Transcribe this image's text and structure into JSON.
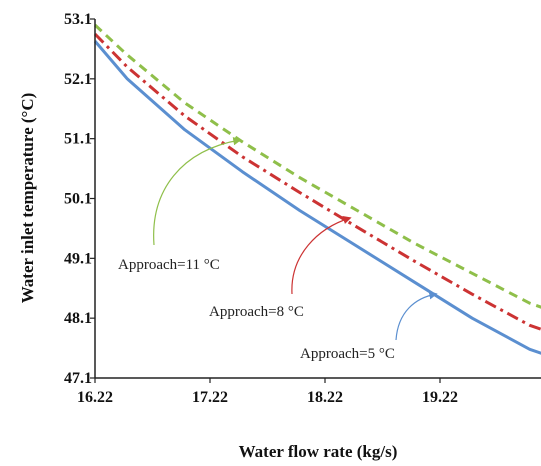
{
  "chart_data": {
    "type": "line",
    "title": "",
    "xlabel": "Water flow rate (kg/s)",
    "ylabel": "Water inlet temperature (°C)",
    "xlim": [
      16.22,
      20.15
    ],
    "ylim": [
      47.1,
      53.1
    ],
    "xticks": [
      "16.22",
      "17.22",
      "18.22",
      "19.22"
    ],
    "yticks": [
      "47.1",
      "48.1",
      "49.1",
      "50.1",
      "51.1",
      "52.1",
      "53.1"
    ],
    "grid": false,
    "legend": "none",
    "series": [
      {
        "color": "#5b8fd0",
        "dash": "solid",
        "x": [
          16.22,
          16.5,
          17.0,
          17.5,
          18.0,
          18.5,
          19.0,
          19.5,
          20.0,
          20.15
        ],
        "y": [
          52.73,
          52.1,
          51.25,
          50.55,
          49.9,
          49.3,
          48.7,
          48.1,
          47.58,
          47.48
        ]
      },
      {
        "color": "#cc3333",
        "dash": "dashdot",
        "x": [
          16.22,
          16.5,
          17.0,
          17.5,
          18.0,
          18.5,
          19.0,
          19.5,
          20.0,
          20.15
        ],
        "y": [
          52.85,
          52.3,
          51.48,
          50.8,
          50.2,
          49.62,
          49.05,
          48.5,
          47.98,
          47.88
        ]
      },
      {
        "color": "#8fbf4a",
        "dash": "dashed",
        "x": [
          16.22,
          16.5,
          17.0,
          17.5,
          18.0,
          18.5,
          19.0,
          19.5,
          20.0,
          20.15
        ],
        "y": [
          53.0,
          52.5,
          51.7,
          51.05,
          50.45,
          49.9,
          49.35,
          48.85,
          48.35,
          48.25
        ]
      }
    ],
    "annotations": [
      {
        "text": "Approach=11 °C",
        "color": "#8fbf4a"
      },
      {
        "text": "Approach=8 °C",
        "color": "#cc3333"
      },
      {
        "text": "Approach=5 °C",
        "color": "#5b8fd0"
      }
    ]
  }
}
